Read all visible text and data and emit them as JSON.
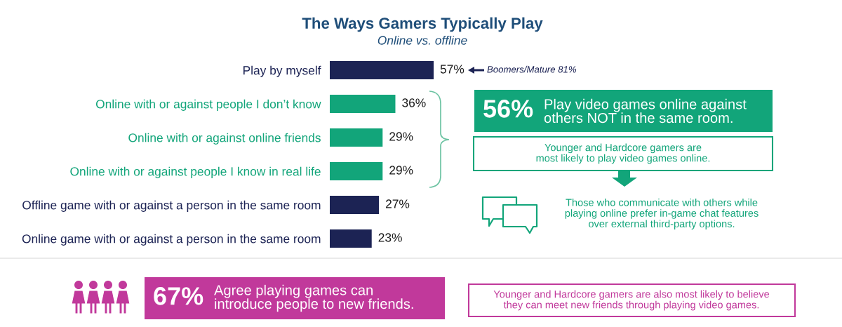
{
  "chart_data": {
    "type": "bar",
    "orientation": "horizontal",
    "title": "The Ways Gamers Typically Play",
    "subtitle": "Online vs. offline",
    "categories": [
      "Play by myself",
      "Online with or against people I don’t know",
      "Online with or against online friends",
      "Online with or against people I know in real life",
      "Offline game with or against a person in the same room",
      "Online game with or against a person in the same room"
    ],
    "values": [
      57,
      36,
      29,
      29,
      27,
      23
    ],
    "colors": [
      "#1c2354",
      "#12a57a",
      "#12a57a",
      "#12a57a",
      "#1c2354",
      "#1c2354"
    ],
    "value_labels": [
      "57%",
      "36%",
      "29%",
      "29%",
      "27%",
      "23%"
    ],
    "tick_labels": "y",
    "annotations": [
      "Boomers/Mature 81%",
      "56%",
      "Play video games online against\nothers NOT in the same room.",
      "Younger and Hardcore gamers are\nmost likely to play video games online.",
      "Those who communicate with others while\nplaying online prefer in-game chat features\nover external third-party options.",
      "67%",
      "Agree playing games can\nintroduce people to new friends.",
      "Younger and Hardcore gamers are also most likely to believe\nthey can meet new friends through playing video games."
    ]
  }
}
